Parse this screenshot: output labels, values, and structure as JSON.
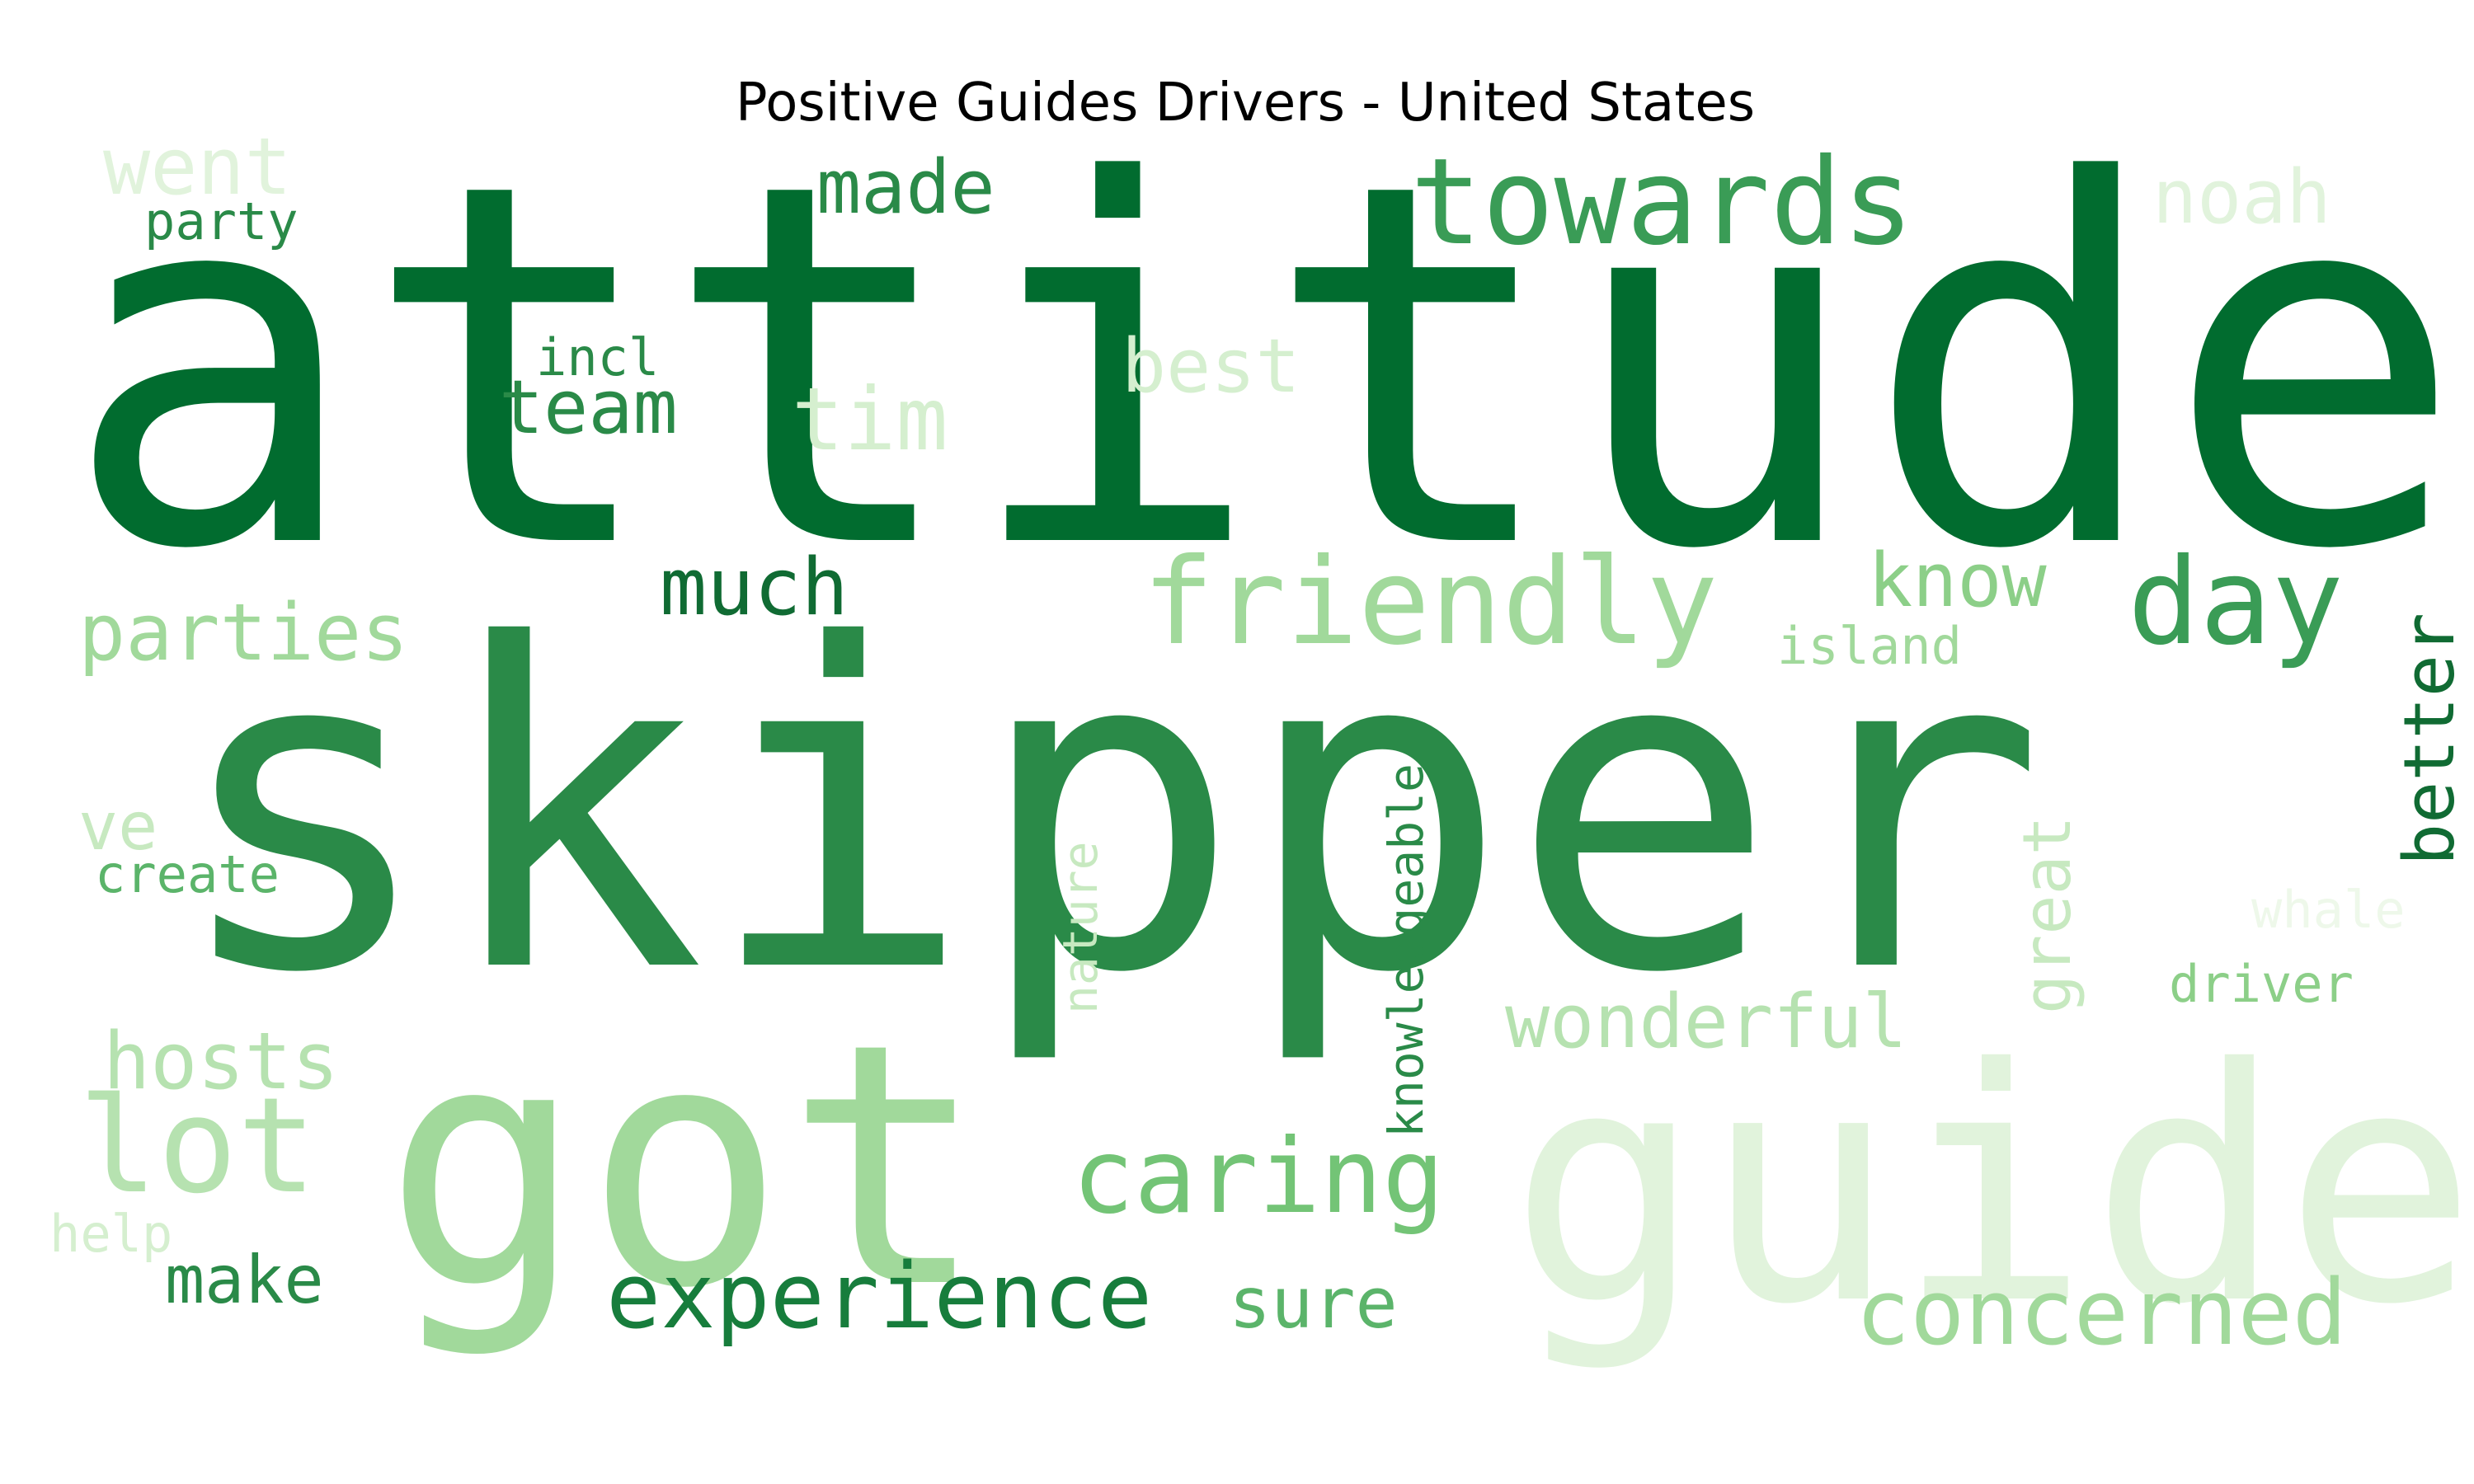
{
  "chart_data": {
    "type": "wordcloud",
    "title": "Positive Guides Drivers - United States",
    "words": [
      {
        "text": "attitude",
        "color": "#016c2f"
      },
      {
        "text": "skipper",
        "color": "#2a8a48"
      },
      {
        "text": "got",
        "color": "#a1d99b"
      },
      {
        "text": "guide",
        "color": "#e1f3dc"
      },
      {
        "text": "towards",
        "color": "#3a9c56"
      },
      {
        "text": "friendly",
        "color": "#a1d99b"
      },
      {
        "text": "day",
        "color": "#3a9c56"
      },
      {
        "text": "caring",
        "color": "#73c476"
      },
      {
        "text": "experience",
        "color": "#177d3c"
      },
      {
        "text": "concerned",
        "color": "#a1d99b"
      },
      {
        "text": "lot",
        "color": "#b6e2b0"
      },
      {
        "text": "wonderful",
        "color": "#b6e2b0"
      },
      {
        "text": "hosts",
        "color": "#b6e2b0"
      },
      {
        "text": "parties",
        "color": "#a1d99b"
      },
      {
        "text": "much",
        "color": "#106b33"
      },
      {
        "text": "made",
        "color": "#2a8a48"
      },
      {
        "text": "know",
        "color": "#8ccf88"
      },
      {
        "text": "team",
        "color": "#2a8a48"
      },
      {
        "text": "tim",
        "color": "#d5efcf"
      },
      {
        "text": "best",
        "color": "#d5efcf"
      },
      {
        "text": "went",
        "color": "#e1f3dc"
      },
      {
        "text": "noah",
        "color": "#e1f3dc"
      },
      {
        "text": "make",
        "color": "#2a8a48"
      },
      {
        "text": "sure",
        "color": "#5bb46a"
      },
      {
        "text": "better",
        "color": "#106b33"
      },
      {
        "text": "ve",
        "color": "#c7e9c0"
      },
      {
        "text": "great",
        "color": "#c7e9c0"
      },
      {
        "text": "knowledgeable",
        "color": "#2a8a48"
      },
      {
        "text": "nature",
        "color": "#c7e9c0"
      },
      {
        "text": "island",
        "color": "#a1d99b"
      },
      {
        "text": "incl",
        "color": "#2a8a48"
      },
      {
        "text": "party",
        "color": "#2a8a48"
      },
      {
        "text": "create",
        "color": "#5bb46a"
      },
      {
        "text": "help",
        "color": "#d5efcf"
      },
      {
        "text": "driver",
        "color": "#8ccf88"
      },
      {
        "text": "whale",
        "color": "#eef8ea"
      }
    ]
  }
}
